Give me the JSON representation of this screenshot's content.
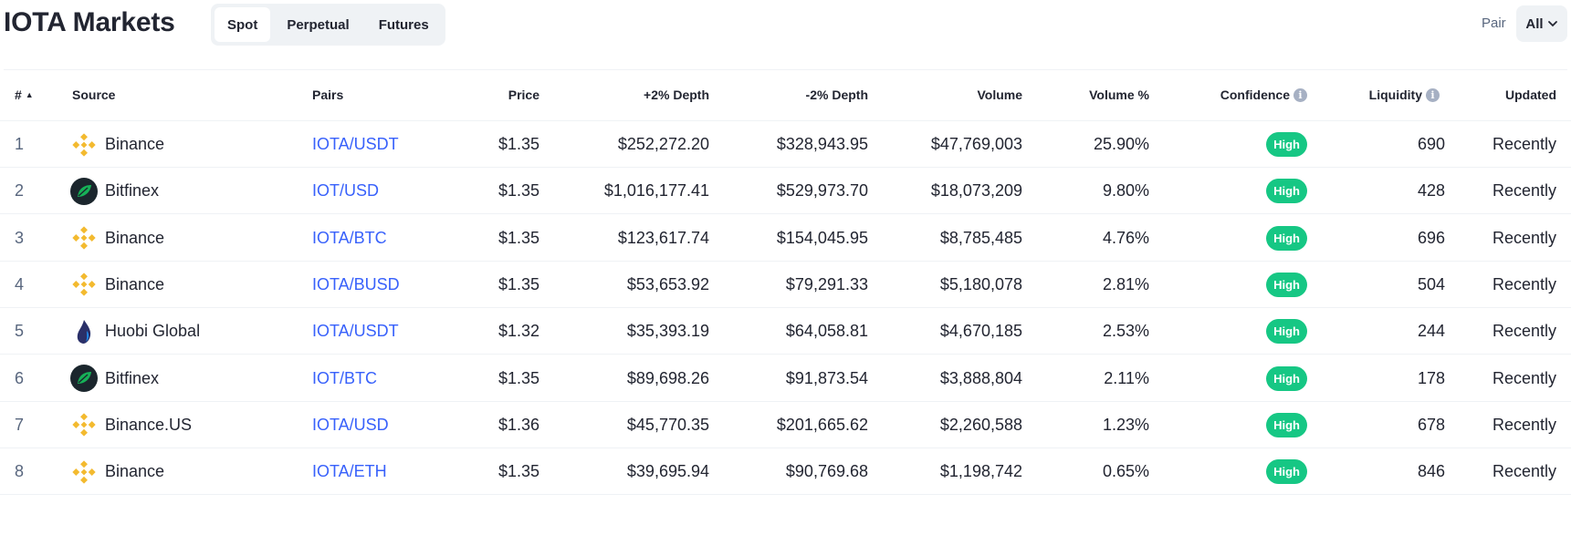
{
  "header": {
    "title": "IOTA Markets",
    "tabs": [
      {
        "label": "Spot",
        "active": true
      },
      {
        "label": "Perpetual",
        "active": false
      },
      {
        "label": "Futures",
        "active": false
      }
    ],
    "pair_label": "Pair",
    "pair_value": "All"
  },
  "table": {
    "columns": {
      "rank": "#",
      "source": "Source",
      "pairs": "Pairs",
      "price": "Price",
      "depth_plus": "+2% Depth",
      "depth_minus": "-2% Depth",
      "volume": "Volume",
      "volume_pct": "Volume %",
      "confidence": "Confidence",
      "liquidity": "Liquidity",
      "updated": "Updated"
    },
    "rows": [
      {
        "rank": "1",
        "source": "Binance",
        "icon": "binance-icon",
        "pair": "IOTA/USDT",
        "price": "$1.35",
        "depth_plus": "$252,272.20",
        "depth_minus": "$328,943.95",
        "volume": "$47,769,003",
        "volume_pct": "25.90%",
        "confidence": "High",
        "liquidity": "690",
        "updated": "Recently"
      },
      {
        "rank": "2",
        "source": "Bitfinex",
        "icon": "bitfinex-icon",
        "pair": "IOT/USD",
        "price": "$1.35",
        "depth_plus": "$1,016,177.41",
        "depth_minus": "$529,973.70",
        "volume": "$18,073,209",
        "volume_pct": "9.80%",
        "confidence": "High",
        "liquidity": "428",
        "updated": "Recently"
      },
      {
        "rank": "3",
        "source": "Binance",
        "icon": "binance-icon",
        "pair": "IOTA/BTC",
        "price": "$1.35",
        "depth_plus": "$123,617.74",
        "depth_minus": "$154,045.95",
        "volume": "$8,785,485",
        "volume_pct": "4.76%",
        "confidence": "High",
        "liquidity": "696",
        "updated": "Recently"
      },
      {
        "rank": "4",
        "source": "Binance",
        "icon": "binance-icon",
        "pair": "IOTA/BUSD",
        "price": "$1.35",
        "depth_plus": "$53,653.92",
        "depth_minus": "$79,291.33",
        "volume": "$5,180,078",
        "volume_pct": "2.81%",
        "confidence": "High",
        "liquidity": "504",
        "updated": "Recently"
      },
      {
        "rank": "5",
        "source": "Huobi Global",
        "icon": "huobi-icon",
        "pair": "IOTA/USDT",
        "price": "$1.32",
        "depth_plus": "$35,393.19",
        "depth_minus": "$64,058.81",
        "volume": "$4,670,185",
        "volume_pct": "2.53%",
        "confidence": "High",
        "liquidity": "244",
        "updated": "Recently"
      },
      {
        "rank": "6",
        "source": "Bitfinex",
        "icon": "bitfinex-icon",
        "pair": "IOT/BTC",
        "price": "$1.35",
        "depth_plus": "$89,698.26",
        "depth_minus": "$91,873.54",
        "volume": "$3,888,804",
        "volume_pct": "2.11%",
        "confidence": "High",
        "liquidity": "178",
        "updated": "Recently"
      },
      {
        "rank": "7",
        "source": "Binance.US",
        "icon": "binance-icon",
        "pair": "IOTA/USD",
        "price": "$1.36",
        "depth_plus": "$45,770.35",
        "depth_minus": "$201,665.62",
        "volume": "$2,260,588",
        "volume_pct": "1.23%",
        "confidence": "High",
        "liquidity": "678",
        "updated": "Recently"
      },
      {
        "rank": "8",
        "source": "Binance",
        "icon": "binance-icon",
        "pair": "IOTA/ETH",
        "price": "$1.35",
        "depth_plus": "$39,695.94",
        "depth_minus": "$90,769.68",
        "volume": "$1,198,742",
        "volume_pct": "0.65%",
        "confidence": "High",
        "liquidity": "846",
        "updated": "Recently"
      }
    ]
  },
  "colors": {
    "link": "#3861fb",
    "confidence_high": "#16c784",
    "binance": "#f3ba2f",
    "bitfinex": "#16b157",
    "huobi": "#2a3069"
  }
}
